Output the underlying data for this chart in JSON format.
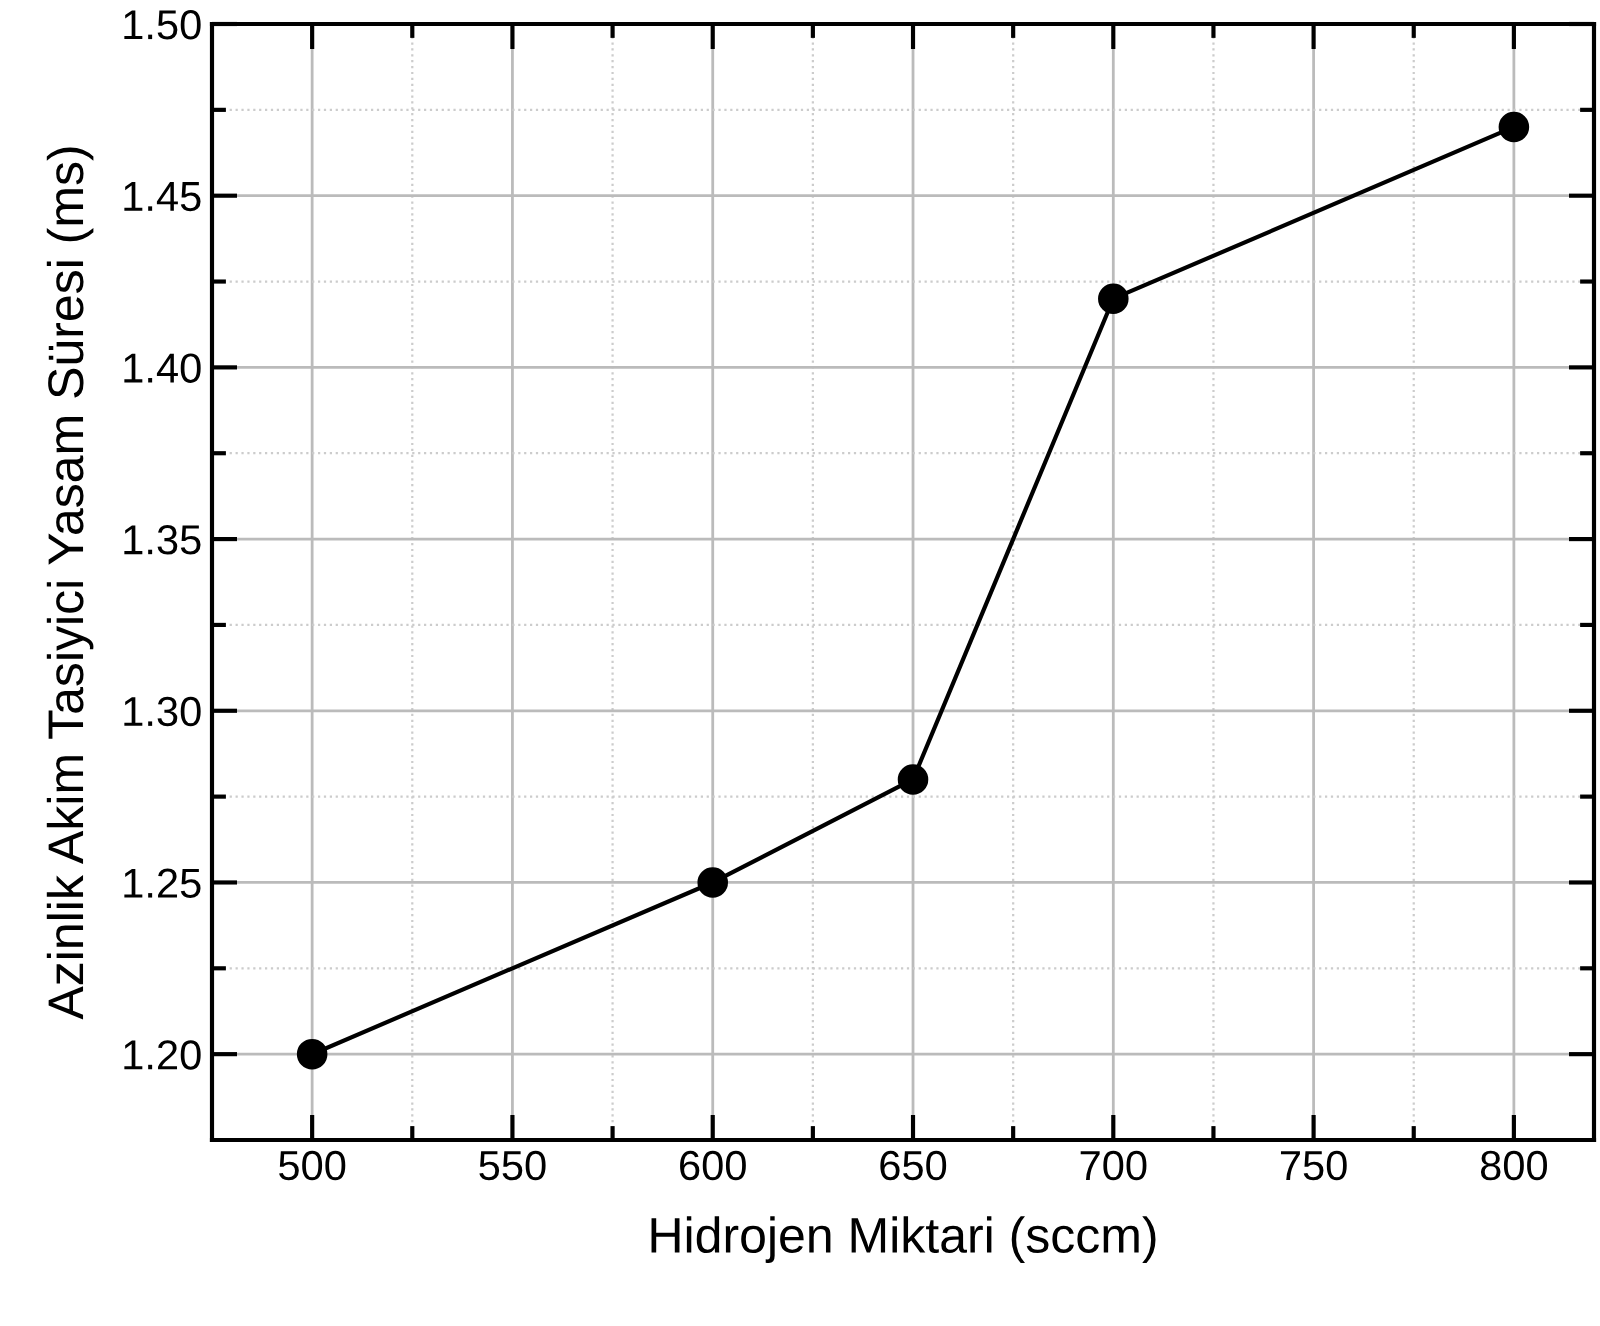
{
  "chart_data": {
    "type": "line",
    "xlabel": "Hidrojen Miktari (sccm)",
    "ylabel": "Azinlik Akim Tasiyici Yasam Süresi (ms)",
    "x": [
      500,
      600,
      650,
      700,
      800
    ],
    "series": [
      {
        "color": "#000000",
        "values": [
          1.2,
          1.25,
          1.28,
          1.42,
          1.47
        ]
      }
    ],
    "xlim": [
      475,
      820
    ],
    "xticks": [
      500,
      550,
      600,
      650,
      700,
      750,
      800
    ],
    "ylim": [
      1.175,
      1.5
    ],
    "yticks": [
      {
        "value": 1.2,
        "label": "1.20"
      },
      {
        "value": 1.25,
        "label": "1.25"
      },
      {
        "value": 1.3,
        "label": "1.30"
      },
      {
        "value": 1.35,
        "label": "1.35"
      },
      {
        "value": 1.4,
        "label": "1.40"
      },
      {
        "value": 1.45,
        "label": "1.45"
      },
      {
        "value": 1.5,
        "label": "1.50"
      }
    ],
    "grid": true,
    "marker": "circle",
    "line_style": "solid"
  }
}
